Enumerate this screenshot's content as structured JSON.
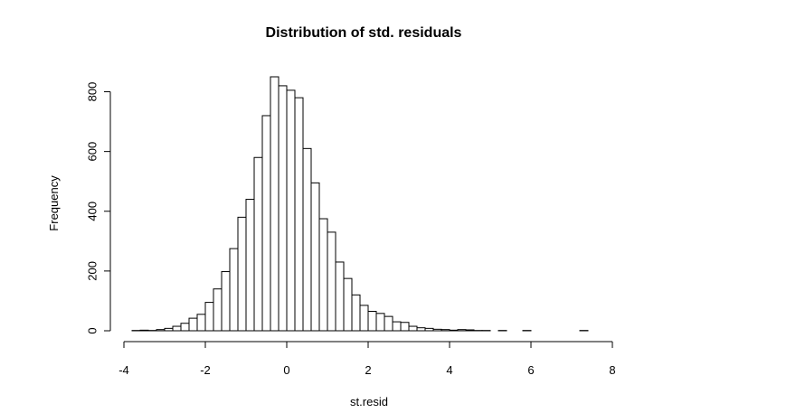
{
  "chart_data": {
    "type": "bar",
    "title": "Distribution of std. residuals",
    "xlabel": "st.resid",
    "ylabel": "Frequency",
    "xlim": [
      -4,
      8
    ],
    "ylim": [
      0,
      850
    ],
    "grid": false,
    "x_ticks": [
      -4,
      -2,
      0,
      2,
      4,
      6,
      8
    ],
    "x_tick_labels": [
      "-4",
      "-2",
      "0",
      "2",
      "4",
      "6",
      "8"
    ],
    "y_ticks": [
      0,
      200,
      400,
      600,
      800
    ],
    "y_tick_labels": [
      "0",
      "200",
      "400",
      "600",
      "800"
    ],
    "bin_width": 0.2,
    "bin_edges": [
      -3.8,
      -3.6,
      -3.4,
      -3.2,
      -3.0,
      -2.8,
      -2.6,
      -2.4,
      -2.2,
      -2.0,
      -1.8,
      -1.6,
      -1.4,
      -1.2,
      -1.0,
      -0.8,
      -0.6,
      -0.4,
      -0.2,
      0.0,
      0.2,
      0.4,
      0.6,
      0.8,
      1.0,
      1.2,
      1.4,
      1.6,
      1.8,
      2.0,
      2.2,
      2.4,
      2.6,
      2.8,
      3.0,
      3.2,
      3.4,
      3.6,
      3.8,
      4.0,
      4.2,
      4.4,
      4.6,
      4.8,
      5.0,
      5.2,
      5.4,
      5.6,
      5.8,
      6.0,
      6.2,
      6.4,
      6.6,
      6.8,
      7.0,
      7.2,
      7.4,
      7.6
    ],
    "values": [
      1,
      2,
      1,
      4,
      8,
      15,
      25,
      42,
      55,
      95,
      140,
      198,
      275,
      380,
      440,
      580,
      720,
      850,
      820,
      805,
      780,
      610,
      495,
      375,
      330,
      230,
      175,
      120,
      85,
      65,
      58,
      48,
      30,
      28,
      15,
      10,
      8,
      5,
      4,
      2,
      4,
      3,
      1,
      1,
      0,
      1,
      0,
      0,
      1,
      0,
      0,
      0,
      0,
      0,
      0,
      1,
      0
    ]
  }
}
